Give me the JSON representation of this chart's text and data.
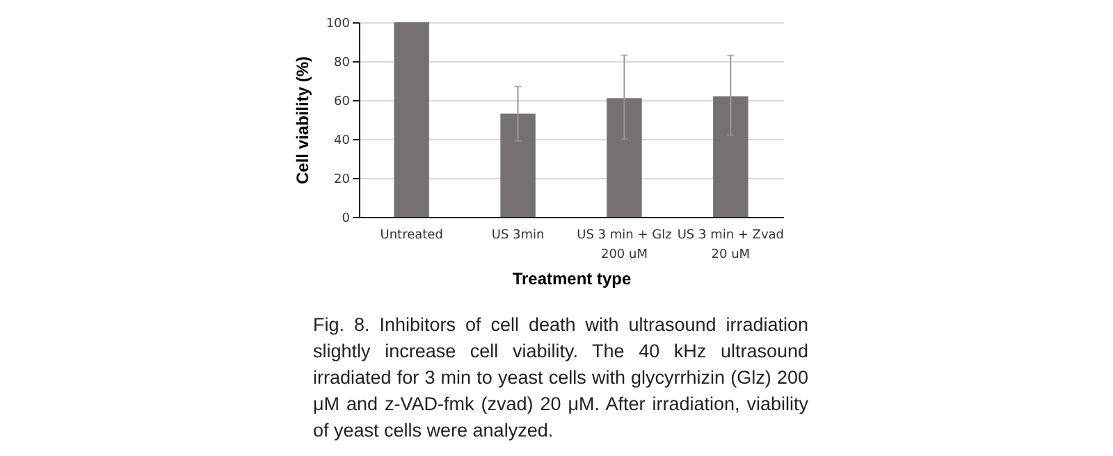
{
  "chart_data": {
    "type": "bar",
    "xlabel": "Treatment type",
    "ylabel": "Cell viability (%)",
    "categories": [
      "Untreated",
      "US 3min",
      "US 3 min + Glz\n200 uM",
      "US 3 min + Zvad\n20 uM"
    ],
    "values": [
      100,
      53,
      61,
      62
    ],
    "errors": [
      null,
      [
        39,
        67
      ],
      [
        40,
        83
      ],
      [
        42,
        83
      ]
    ],
    "color": "#767171",
    "ylim": [
      0,
      100
    ],
    "yticks": [
      0,
      20,
      40,
      60,
      80,
      100
    ],
    "grid": "y",
    "annotations": [
      "Fig. 8. Inhibitors of cell death with ultrasound irradiation slightly increase cell viability. The 40 kHz ultrasound irradiated for 3 min to yeast cells with glycyrrhizin (Glz) 200 μM and z-VAD-fmk (zvad) 20 μM. After irradiation, viability of yeast cells were analyzed."
    ]
  }
}
